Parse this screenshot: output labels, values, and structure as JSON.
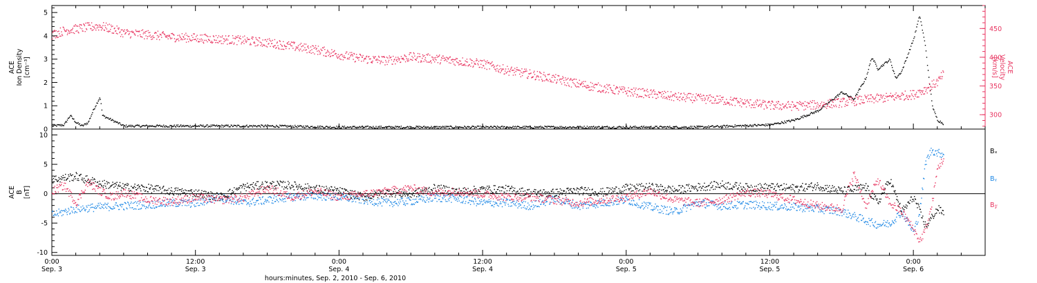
{
  "colors": {
    "black": "#000000",
    "red": "#e8335f",
    "blue": "#1e88e5"
  },
  "xlabel": "hours:minutes, Sep.  2, 2010 - Sep.  6, 2010",
  "x_ticks": [
    {
      "t": 0,
      "time": "0:00",
      "day": "Sep. 3"
    },
    {
      "t": 12,
      "time": "12:00",
      "day": "Sep. 3"
    },
    {
      "t": 24,
      "time": "0:00",
      "day": "Sep. 4"
    },
    {
      "t": 36,
      "time": "12:00",
      "day": "Sep. 4"
    },
    {
      "t": 48,
      "time": "0:00",
      "day": "Sep. 5"
    },
    {
      "t": 60,
      "time": "12:00",
      "day": "Sep. 5"
    },
    {
      "t": 72,
      "time": "0:00",
      "day": "Sep. 6"
    }
  ],
  "chart_data": [
    {
      "type": "scatter",
      "left_label": [
        "ACE",
        "Ion Density",
        "[cm⁻³]"
      ],
      "right_label": [
        "ACE",
        "Velocity",
        "[km/s]"
      ],
      "x_range_hours_from_sep3": [
        0,
        78
      ],
      "ylim_left": [
        0,
        5.3
      ],
      "ylim_right": [
        275,
        490
      ],
      "left_ticks": [
        "0",
        "1",
        "2",
        "3",
        "4",
        "5"
      ],
      "right_ticks": [
        "300",
        "350",
        "400",
        "450"
      ],
      "series": [
        {
          "name": "Ion Density",
          "axis": "left",
          "color": "#000000",
          "points": [
            [
              0,
              0.15
            ],
            [
              1,
              0.2
            ],
            [
              1.5,
              0.6
            ],
            [
              2,
              0.3
            ],
            [
              2.5,
              0.15
            ],
            [
              3,
              0.3
            ],
            [
              3.5,
              0.9
            ],
            [
              4,
              1.4
            ],
            [
              4.2,
              0.6
            ],
            [
              6,
              0.15
            ],
            [
              8,
              0.15
            ],
            [
              12,
              0.15
            ],
            [
              18,
              0.15
            ],
            [
              24,
              0.1
            ],
            [
              30,
              0.1
            ],
            [
              36,
              0.1
            ],
            [
              42,
              0.1
            ],
            [
              48,
              0.1
            ],
            [
              54,
              0.1
            ],
            [
              60,
              0.2
            ],
            [
              62,
              0.4
            ],
            [
              64,
              0.8
            ],
            [
              65,
              1.2
            ],
            [
              66,
              1.6
            ],
            [
              67,
              1.3
            ],
            [
              68,
              2.2
            ],
            [
              68.5,
              3.1
            ],
            [
              69,
              2.6
            ],
            [
              70,
              3.0
            ],
            [
              70.5,
              2.2
            ],
            [
              71,
              2.5
            ],
            [
              71.5,
              3.2
            ],
            [
              72,
              3.9
            ],
            [
              72.5,
              4.9
            ],
            [
              73,
              3.5
            ],
            [
              73.3,
              2.0
            ],
            [
              73.6,
              0.9
            ],
            [
              74,
              0.4
            ],
            [
              74.5,
              0.25
            ]
          ]
        },
        {
          "name": "Velocity",
          "axis": "right",
          "color": "#e8335f",
          "points": [
            [
              0,
              440
            ],
            [
              1,
              447
            ],
            [
              2,
              450
            ],
            [
              3,
              453
            ],
            [
              4,
              455
            ],
            [
              5,
              450
            ],
            [
              6,
              443
            ],
            [
              8,
              440
            ],
            [
              10,
              436
            ],
            [
              12,
              434
            ],
            [
              14,
              432
            ],
            [
              16,
              430
            ],
            [
              18,
              426
            ],
            [
              20,
              420
            ],
            [
              22,
              414
            ],
            [
              24,
              405
            ],
            [
              26,
              398
            ],
            [
              28,
              395
            ],
            [
              30,
              401
            ],
            [
              32,
              398
            ],
            [
              34,
              394
            ],
            [
              36,
              389
            ],
            [
              38,
              378
            ],
            [
              40,
              371
            ],
            [
              42,
              363
            ],
            [
              44,
              354
            ],
            [
              46,
              347
            ],
            [
              48,
              341
            ],
            [
              50,
              337
            ],
            [
              52,
              332
            ],
            [
              54,
              329
            ],
            [
              56,
              326
            ],
            [
              58,
              321
            ],
            [
              60,
              317
            ],
            [
              62,
              316
            ],
            [
              64,
              318
            ],
            [
              66,
              322
            ],
            [
              68,
              327
            ],
            [
              70,
              331
            ],
            [
              72,
              336
            ],
            [
              73,
              345
            ],
            [
              74,
              358
            ],
            [
              74.5,
              372
            ]
          ]
        }
      ]
    },
    {
      "type": "scatter",
      "left_label": [
        "ACE",
        "B",
        "[nT]"
      ],
      "x_range_hours_from_sep3": [
        0,
        78
      ],
      "ylim": [
        -10.5,
        11
      ],
      "left_ticks": [
        "-10",
        "-5",
        "0",
        "5",
        "10"
      ],
      "legend": [
        {
          "name": "Bₓ",
          "color": "#000000"
        },
        {
          "name": "Bᵧ",
          "color": "#1e88e5"
        },
        {
          "name": "B𝓏",
          "color": "#e8335f"
        }
      ],
      "series": [
        {
          "name": "Bₓ",
          "color": "#000000",
          "points": [
            [
              0,
              2.5
            ],
            [
              2,
              3.0
            ],
            [
              4,
              1.8
            ],
            [
              6,
              1.2
            ],
            [
              8,
              1.0
            ],
            [
              10,
              0.5
            ],
            [
              12,
              0.2
            ],
            [
              14,
              -0.5
            ],
            [
              16,
              1.2
            ],
            [
              18,
              1.6
            ],
            [
              20,
              1.5
            ],
            [
              22,
              0.9
            ],
            [
              24,
              0.5
            ],
            [
              26,
              -0.5
            ],
            [
              28,
              0.3
            ],
            [
              30,
              0.0
            ],
            [
              32,
              1.0
            ],
            [
              34,
              0.4
            ],
            [
              36,
              0.8
            ],
            [
              38,
              0.8
            ],
            [
              40,
              0.2
            ],
            [
              42,
              0.2
            ],
            [
              44,
              0.6
            ],
            [
              46,
              0.3
            ],
            [
              48,
              1.0
            ],
            [
              50,
              1.2
            ],
            [
              52,
              0.7
            ],
            [
              54,
              1.2
            ],
            [
              56,
              1.6
            ],
            [
              58,
              1.1
            ],
            [
              60,
              1.2
            ],
            [
              62,
              1.0
            ],
            [
              64,
              1.4
            ],
            [
              66,
              0.5
            ],
            [
              68,
              1.2
            ],
            [
              69,
              -1.5
            ],
            [
              70,
              2.5
            ],
            [
              71,
              -3.0
            ],
            [
              72,
              -0.5
            ],
            [
              73,
              -5.5
            ],
            [
              73.5,
              -4.0
            ],
            [
              74,
              -2.5
            ],
            [
              74.5,
              -3.2
            ]
          ]
        },
        {
          "name": "Bᵧ",
          "color": "#1e88e5",
          "points": [
            [
              0,
              -3.5
            ],
            [
              2,
              -2.5
            ],
            [
              4,
              -2.2
            ],
            [
              6,
              -2.0
            ],
            [
              8,
              -1.8
            ],
            [
              10,
              -1.5
            ],
            [
              12,
              -1.6
            ],
            [
              14,
              -0.5
            ],
            [
              16,
              -1.5
            ],
            [
              18,
              -1.0
            ],
            [
              20,
              -0.5
            ],
            [
              22,
              -0.3
            ],
            [
              24,
              -0.5
            ],
            [
              26,
              -1.0
            ],
            [
              28,
              -1.5
            ],
            [
              30,
              -1.2
            ],
            [
              32,
              -0.6
            ],
            [
              34,
              -0.8
            ],
            [
              36,
              -1.5
            ],
            [
              38,
              -1.5
            ],
            [
              40,
              -2.0
            ],
            [
              42,
              -0.8
            ],
            [
              44,
              -2.0
            ],
            [
              46,
              -1.5
            ],
            [
              48,
              -1.0
            ],
            [
              50,
              -2.2
            ],
            [
              52,
              -3.0
            ],
            [
              54,
              -1.5
            ],
            [
              56,
              -2.0
            ],
            [
              58,
              -1.8
            ],
            [
              60,
              -2.0
            ],
            [
              62,
              -2.2
            ],
            [
              64,
              -2.5
            ],
            [
              66,
              -3.0
            ],
            [
              68,
              -4.5
            ],
            [
              69,
              -5.2
            ],
            [
              70,
              -5.0
            ],
            [
              71,
              -3.0
            ],
            [
              72,
              -6.5
            ],
            [
              72.5,
              -3.0
            ],
            [
              73,
              5.5
            ],
            [
              73.5,
              7.5
            ],
            [
              74,
              7.0
            ],
            [
              74.5,
              6.8
            ]
          ]
        },
        {
          "name": "B𝓏",
          "color": "#e8335f",
          "points": [
            [
              0,
              0.5
            ],
            [
              1,
              1.5
            ],
            [
              2,
              -1.5
            ],
            [
              3,
              2.0
            ],
            [
              4,
              0.5
            ],
            [
              5,
              -0.5
            ],
            [
              6,
              0.3
            ],
            [
              8,
              -1.0
            ],
            [
              10,
              -1.2
            ],
            [
              12,
              -0.6
            ],
            [
              14,
              -1.0
            ],
            [
              16,
              -0.6
            ],
            [
              18,
              1.0
            ],
            [
              20,
              -0.5
            ],
            [
              22,
              0.5
            ],
            [
              24,
              -0.5
            ],
            [
              26,
              0.0
            ],
            [
              28,
              0.5
            ],
            [
              30,
              1.0
            ],
            [
              32,
              0.2
            ],
            [
              34,
              0.5
            ],
            [
              36,
              0.0
            ],
            [
              38,
              -0.5
            ],
            [
              40,
              -0.5
            ],
            [
              42,
              -1.0
            ],
            [
              44,
              -1.5
            ],
            [
              46,
              -1.0
            ],
            [
              48,
              -0.5
            ],
            [
              50,
              0.5
            ],
            [
              52,
              -1.0
            ],
            [
              54,
              -1.5
            ],
            [
              56,
              -1.0
            ],
            [
              58,
              0.3
            ],
            [
              60,
              0.0
            ],
            [
              62,
              -1.0
            ],
            [
              64,
              -2.0
            ],
            [
              66,
              -2.5
            ],
            [
              67,
              3.5
            ],
            [
              68,
              -2.0
            ],
            [
              69,
              2.5
            ],
            [
              70,
              -1.5
            ],
            [
              71,
              -3.0
            ],
            [
              72,
              -6.0
            ],
            [
              72.5,
              -8.0
            ],
            [
              73,
              -6.0
            ],
            [
              73.5,
              -2.0
            ],
            [
              74,
              4.5
            ],
            [
              74.5,
              6.0
            ]
          ]
        }
      ]
    }
  ]
}
